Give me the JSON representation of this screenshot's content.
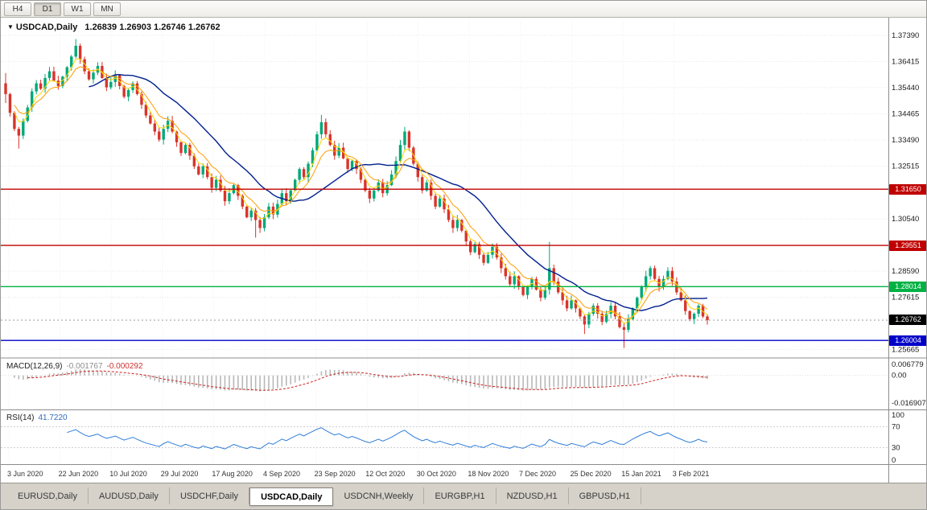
{
  "toolbar": {
    "timeframes": [
      "H4",
      "D1",
      "W1",
      "MN"
    ],
    "active_timeframe": "D1"
  },
  "chart": {
    "symbol_title": "USDCAD,Daily",
    "ohlc_line": "1.26839 1.26903 1.26746 1.26762",
    "dropdown_icon": "▼"
  },
  "price_axis": {
    "labels": [
      "1.37390",
      "1.36415",
      "1.35440",
      "1.34465",
      "1.33490",
      "1.32515",
      "1.30540",
      "1.28590",
      "1.27615",
      "1.25665"
    ]
  },
  "levels": [
    {
      "label": "1.31650",
      "price": 1.3165,
      "color": "#c00000"
    },
    {
      "label": "1.29551",
      "price": 1.29551,
      "color": "#c00000"
    },
    {
      "label": "1.28014",
      "price": 1.28014,
      "color": "#00b244"
    },
    {
      "label": "1.26004",
      "price": 1.26004,
      "color": "#0000c8"
    }
  ],
  "current_price": {
    "label": "1.26762",
    "price": 1.26762,
    "bg": "#000000"
  },
  "macd": {
    "name": "MACD(12,26,9)",
    "value_main": "-0.001767",
    "value_signal": "-0.000292",
    "axis_labels": [
      "0.006779",
      "0.00",
      "-0.016907"
    ]
  },
  "rsi": {
    "name": "RSI(14)",
    "value": "41.7220",
    "axis_labels": [
      "100",
      "70",
      "30",
      "0"
    ],
    "guide_levels": [
      70,
      30
    ]
  },
  "x_axis": {
    "dates": [
      "3 Jun 2020",
      "22 Jun 2020",
      "10 Jul 2020",
      "29 Jul 2020",
      "17 Aug 2020",
      "4 Sep 2020",
      "23 Sep 2020",
      "12 Oct 2020",
      "30 Oct 2020",
      "18 Nov 2020",
      "7 Dec 2020",
      "25 Dec 2020",
      "15 Jan 2021",
      "3 Feb 2021"
    ]
  },
  "tabs": {
    "items": [
      "EURUSD,Daily",
      "AUDUSD,Daily",
      "USDCHF,Daily",
      "USDCAD,Daily",
      "USDCNH,Weekly",
      "EURGBP,H1",
      "NZDUSD,H1",
      "GBPUSD,H1"
    ],
    "active": "USDCAD,Daily"
  },
  "colors": {
    "up": "#00a878",
    "down": "#d8342c",
    "ma_slow": "#001f8f",
    "ma_fast": "#ff9d00",
    "ma_faster": "#ffd400",
    "macd_hist": "#b8b8b8",
    "macd_signal": "#cc2222",
    "rsi_line": "#2f7ed8",
    "grid": "#e7e7e7",
    "frame": "#8c8c8c"
  },
  "chart_data": {
    "type": "candlestick",
    "symbol": "USDCAD",
    "timeframe": "Daily",
    "title": "USDCAD,Daily",
    "date_range": [
      "3 Jun 2020",
      "3 Feb 2021"
    ],
    "price_range": [
      1.2538,
      1.3802
    ],
    "last_ohlc": [
      1.26839,
      1.26903,
      1.26746,
      1.26762
    ],
    "first_open": 1.356,
    "closes": [
      1.352,
      1.345,
      1.339,
      1.3365,
      1.342,
      1.347,
      1.353,
      1.356,
      1.354,
      1.358,
      1.3605,
      1.357,
      1.355,
      1.3585,
      1.362,
      1.366,
      1.37,
      1.365,
      1.3605,
      1.3575,
      1.36,
      1.3625,
      1.358,
      1.3545,
      1.3565,
      1.359,
      1.355,
      1.351,
      1.3535,
      1.356,
      1.352,
      1.348,
      1.344,
      1.341,
      1.338,
      1.335,
      1.339,
      1.342,
      1.338,
      1.334,
      1.33,
      1.333,
      1.329,
      1.325,
      1.322,
      1.325,
      1.321,
      1.317,
      1.32,
      1.316,
      1.312,
      1.315,
      1.318,
      1.314,
      1.31,
      1.306,
      1.3085,
      1.305,
      1.302,
      1.306,
      1.31,
      1.307,
      1.311,
      1.315,
      1.312,
      1.316,
      1.32,
      1.324,
      1.321,
      1.326,
      1.331,
      1.337,
      1.3415,
      1.337,
      1.333,
      1.329,
      1.332,
      1.328,
      1.324,
      1.327,
      1.324,
      1.32,
      1.316,
      1.313,
      1.316,
      1.319,
      1.315,
      1.318,
      1.322,
      1.327,
      1.333,
      1.338,
      1.332,
      1.326,
      1.321,
      1.316,
      1.319,
      1.314,
      1.31,
      1.313,
      1.309,
      1.305,
      1.302,
      1.305,
      1.301,
      1.297,
      1.293,
      1.296,
      1.292,
      1.289,
      1.292,
      1.295,
      1.291,
      1.287,
      1.284,
      1.281,
      1.284,
      1.28,
      1.277,
      1.28,
      1.283,
      1.279,
      1.276,
      1.279,
      1.287,
      1.282,
      1.278,
      1.275,
      1.272,
      1.275,
      1.272,
      1.269,
      1.266,
      1.27,
      1.273,
      1.27,
      1.267,
      1.27,
      1.273,
      1.269,
      1.265,
      1.264,
      1.268,
      1.272,
      1.276,
      1.28,
      1.284,
      1.287,
      1.283,
      1.28,
      1.283,
      1.286,
      1.282,
      1.278,
      1.275,
      1.271,
      1.268,
      1.27,
      1.273,
      1.269,
      1.26762
    ],
    "extra_wicks": {
      "0": [
        0.0035,
        0.003
      ],
      "3": [
        0,
        0.003
      ],
      "16": [
        0.0018,
        0
      ],
      "57": [
        0,
        0.0058
      ],
      "72": [
        0.0015,
        0
      ],
      "91": [
        0.0014,
        0
      ],
      "124": [
        0.0086,
        0
      ],
      "132": [
        0,
        0.0032
      ],
      "141": [
        0,
        0.0052
      ],
      "146": [
        0.0013,
        0
      ]
    },
    "overlays": [
      {
        "name": "ma-slow",
        "kind": "sma",
        "period": 20,
        "color": "#001f8f"
      },
      {
        "name": "ma-fast",
        "kind": "ema",
        "period": 8,
        "color": "#ff9d00"
      },
      {
        "name": "ma-faster",
        "kind": "ema",
        "period": 4,
        "color": "#ffd400"
      }
    ],
    "horizontal_lines": [
      1.3165,
      1.29551,
      1.28014,
      1.26004
    ],
    "indicators": [
      {
        "type": "macd",
        "params": [
          12,
          26,
          9
        ],
        "values": [
          -0.001767,
          -0.000292
        ],
        "range": [
          -0.016907,
          0.006779
        ]
      },
      {
        "type": "rsi",
        "period": 14,
        "value": 41.722,
        "range": [
          0,
          100
        ],
        "guides": [
          70,
          30
        ]
      }
    ]
  }
}
